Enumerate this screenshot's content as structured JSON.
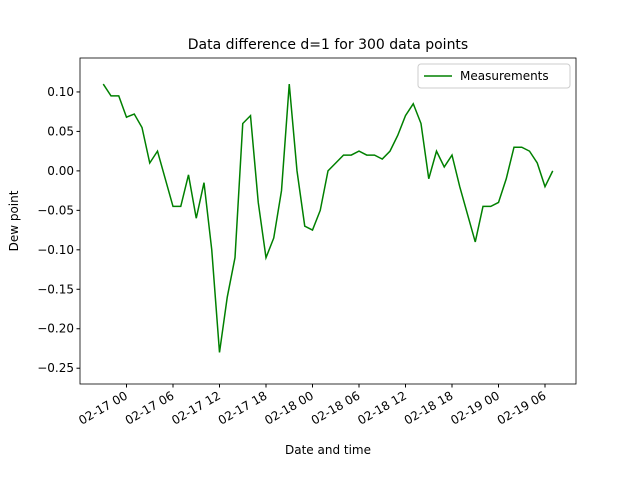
{
  "chart_data": {
    "type": "line",
    "title": "Data difference d=1 for 300 data points",
    "xlabel": "Date and time",
    "ylabel": "Dew point",
    "x": [
      "02-16 21",
      "02-16 22",
      "02-16 23",
      "02-17 00",
      "02-17 01",
      "02-17 02",
      "02-17 03",
      "02-17 04",
      "02-17 05",
      "02-17 06",
      "02-17 07",
      "02-17 08",
      "02-17 09",
      "02-17 10",
      "02-17 11",
      "02-17 12",
      "02-17 13",
      "02-17 14",
      "02-17 15",
      "02-17 16",
      "02-17 17",
      "02-17 18",
      "02-17 19",
      "02-17 20",
      "02-17 21",
      "02-17 22",
      "02-17 23",
      "02-18 00",
      "02-18 01",
      "02-18 02",
      "02-18 03",
      "02-18 04",
      "02-18 05",
      "02-18 06",
      "02-18 07",
      "02-18 08",
      "02-18 09",
      "02-18 10",
      "02-18 11",
      "02-18 12",
      "02-18 13",
      "02-18 14",
      "02-18 15",
      "02-18 16",
      "02-18 17",
      "02-18 18",
      "02-18 19",
      "02-18 20",
      "02-18 21",
      "02-18 22",
      "02-18 23",
      "02-19 00",
      "02-19 01",
      "02-19 02",
      "02-19 03",
      "02-19 04",
      "02-19 05",
      "02-19 06",
      "02-19 07"
    ],
    "series": [
      {
        "name": "Measurements",
        "color": "#008000",
        "values": [
          0.11,
          0.095,
          0.095,
          0.068,
          0.072,
          0.055,
          0.01,
          0.025,
          -0.01,
          -0.045,
          -0.045,
          -0.005,
          -0.06,
          -0.015,
          -0.1,
          -0.23,
          -0.16,
          -0.11,
          0.06,
          0.07,
          -0.04,
          -0.11,
          -0.085,
          -0.025,
          0.11,
          0.0,
          -0.07,
          -0.075,
          -0.05,
          0.0,
          0.01,
          0.02,
          0.02,
          0.025,
          0.02,
          0.02,
          0.015,
          0.025,
          0.045,
          0.07,
          0.085,
          0.06,
          -0.01,
          0.025,
          0.005,
          0.02,
          -0.02,
          -0.055,
          -0.09,
          -0.045,
          -0.045,
          -0.04,
          -0.01,
          0.03,
          0.03,
          0.025,
          0.01,
          -0.02,
          0.0
        ]
      }
    ],
    "xlim": [
      "02-16 18",
      "02-19 10"
    ],
    "xticks": [
      "02-17 00",
      "02-17 06",
      "02-17 12",
      "02-17 18",
      "02-18 00",
      "02-18 06",
      "02-18 12",
      "02-18 18",
      "02-19 00",
      "02-19 06"
    ],
    "ylim": [
      -0.27,
      0.143
    ],
    "yticks": [
      {
        "value": -0.25,
        "label": "−0.25"
      },
      {
        "value": -0.2,
        "label": "−0.20"
      },
      {
        "value": -0.15,
        "label": "−0.15"
      },
      {
        "value": -0.1,
        "label": "−0.10"
      },
      {
        "value": -0.05,
        "label": "−0.05"
      },
      {
        "value": 0,
        "label": "0.00"
      },
      {
        "value": 0.05,
        "label": "0.05"
      },
      {
        "value": 0.1,
        "label": "0.10"
      }
    ],
    "legend": "upper right"
  }
}
